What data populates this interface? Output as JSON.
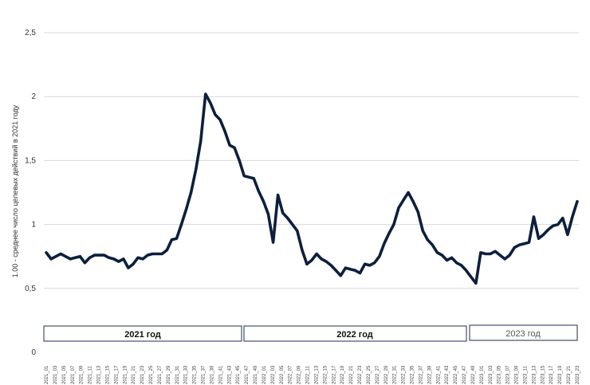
{
  "chart_data": {
    "type": "line",
    "title": "",
    "ylabel": "1.00 - среднее число целевых действий в 2021 году",
    "xlabel": "",
    "ylim": [
      0,
      2.5
    ],
    "y_ticks": [
      "0",
      "0,5",
      "1",
      "1,5",
      "2",
      "2,5"
    ],
    "grid": "horizontal",
    "line_color": "#0d1f3c",
    "x_tick_labels": [
      "2021_01",
      "2021_03",
      "2021_05",
      "2021_07",
      "2021_09",
      "2021_11",
      "2021_13",
      "2021_15",
      "2021_17",
      "2021_19",
      "2021_21",
      "2021_23",
      "2021_25",
      "2021_27",
      "2021_29",
      "2021_31",
      "2021_33",
      "2021_35",
      "2021_37",
      "2021_39",
      "2021_41",
      "2021_43",
      "2021_45",
      "2021_47",
      "2021_49",
      "2022_01",
      "2022_03",
      "2022_05",
      "2022_07",
      "2022_09",
      "2022_11",
      "2022_13",
      "2022_15",
      "2022_17",
      "2022_19",
      "2022_21",
      "2022_23",
      "2022_25",
      "2022_27",
      "2022_29",
      "2022_31",
      "2022_33",
      "2022_35",
      "2022_37",
      "2022_39",
      "2022_41",
      "2022_43",
      "2022_45",
      "2022_47",
      "2022_49",
      "2023_01",
      "2023_03",
      "2023_05",
      "2023_07",
      "2023_09",
      "2023_11",
      "2023_13",
      "2023_15",
      "2023_17",
      "2023_19",
      "2023_21",
      "2023_23"
    ],
    "series": [
      {
        "values": [
          0.78,
          0.73,
          0.75,
          0.77,
          0.75,
          0.73,
          0.74,
          0.75,
          0.7,
          0.74,
          0.76,
          0.76,
          0.76,
          0.74,
          0.73,
          0.71,
          0.73,
          0.66,
          0.69,
          0.74,
          0.73,
          0.76,
          0.77,
          0.77,
          0.77,
          0.8,
          0.88,
          0.89,
          1.0,
          1.12,
          1.25,
          1.43,
          1.65,
          2.02,
          1.95,
          1.86,
          1.82,
          1.73,
          1.62,
          1.6,
          1.5,
          1.38,
          1.37,
          1.36,
          1.26,
          1.18,
          1.08,
          0.86,
          1.23,
          1.09,
          1.05,
          1.0,
          0.95,
          0.8,
          0.69,
          0.72,
          0.77,
          0.73,
          0.71,
          0.68,
          0.64,
          0.6,
          0.66,
          0.65,
          0.64,
          0.62,
          0.69,
          0.68,
          0.7,
          0.75,
          0.85,
          0.93,
          1.0,
          1.13,
          1.19,
          1.25,
          1.18,
          1.1,
          0.95,
          0.88,
          0.84,
          0.78,
          0.76,
          0.72,
          0.74,
          0.7,
          0.68,
          0.64,
          0.59,
          0.54,
          0.78,
          0.77,
          0.77,
          0.79,
          0.76,
          0.73,
          0.76,
          0.82,
          0.84,
          0.85,
          0.86,
          1.06,
          0.89,
          0.92,
          0.96,
          0.99,
          1.0,
          1.05,
          0.92,
          1.06,
          1.18
        ]
      }
    ],
    "year_labels": [
      "2021 год",
      "2022 год",
      "2023 год"
    ]
  }
}
